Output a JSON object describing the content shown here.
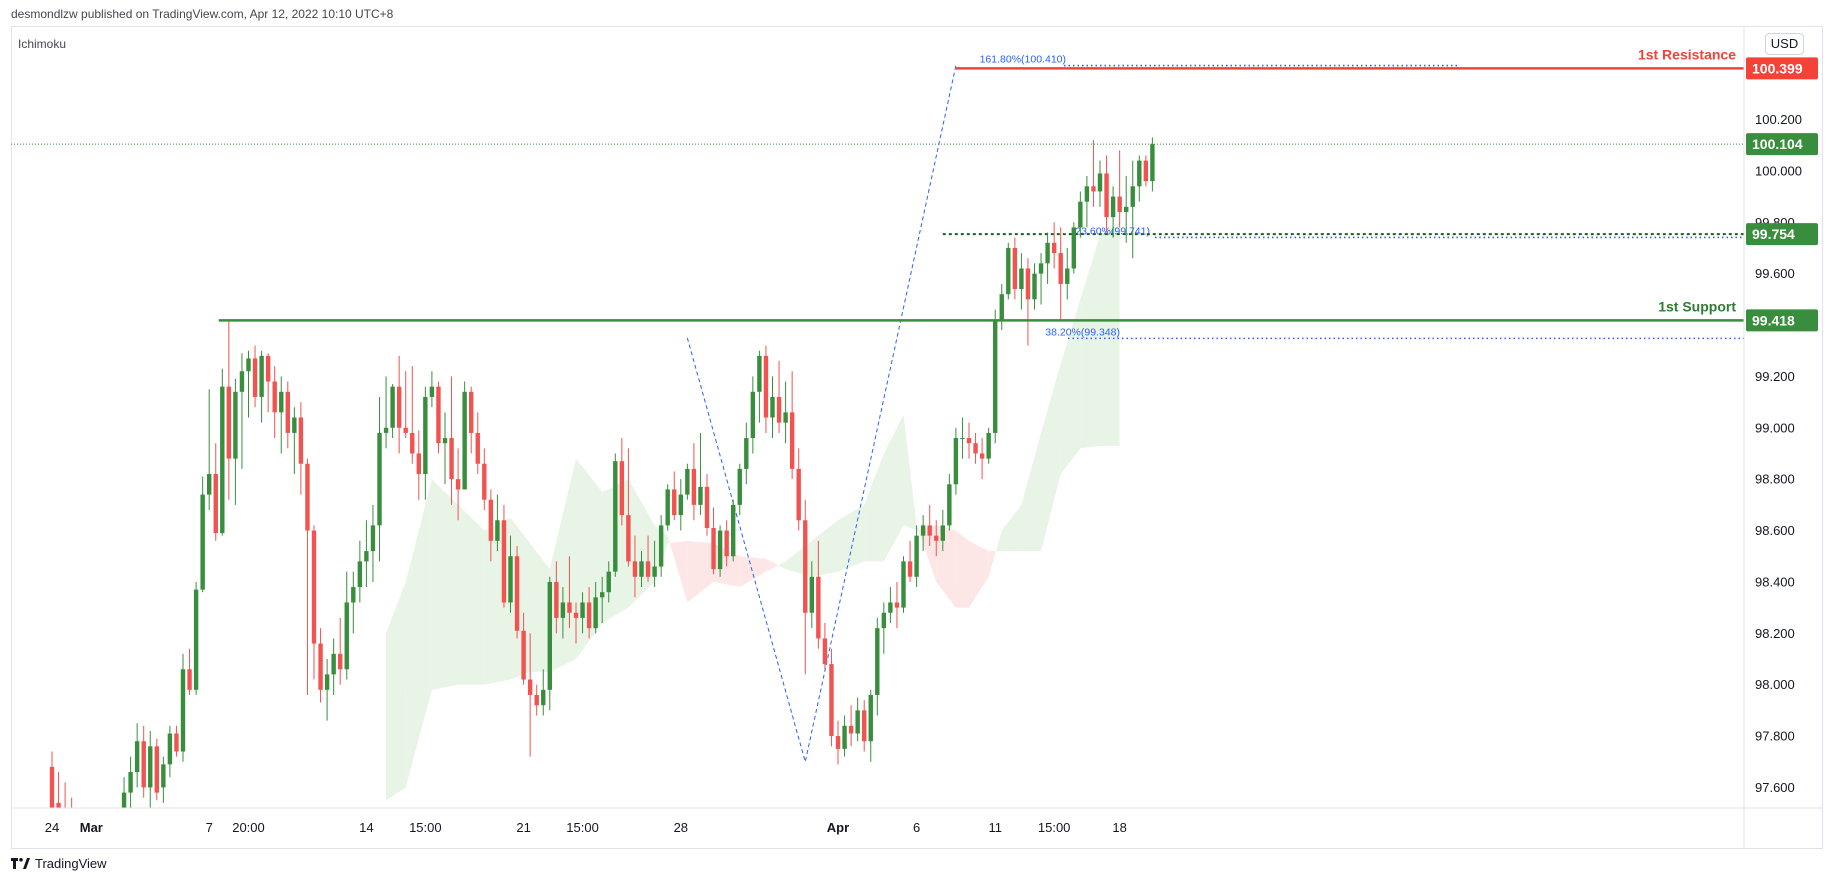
{
  "header": {
    "publisher_text": "desmondlzw published on TradingView.com, Apr 12, 2022 10:10 UTC+8",
    "indicator_label": "Ichimoku",
    "currency_button": "USD"
  },
  "footer": {
    "brand": "TradingView"
  },
  "colors": {
    "up": "#388e3c",
    "down": "#f05350",
    "resistance": "#f44336",
    "support": "#388e3c",
    "fib": "#2962ff",
    "cloud_bull": "#e8f4e6",
    "cloud_bear": "#fde7e6",
    "price_line": "#388e3c"
  },
  "chart_data": {
    "type": "candlestick",
    "y_axis_ticks": [
      "100.200",
      "100.000",
      "99.800",
      "99.600",
      "99.400",
      "99.200",
      "99.000",
      "98.800",
      "98.600",
      "98.400",
      "98.200",
      "98.000",
      "97.800",
      "97.600"
    ],
    "ylim": [
      97.52,
      100.56
    ],
    "x_axis_ticks": [
      {
        "label": "24",
        "bar": 0
      },
      {
        "label": "Mar",
        "bar": 6
      },
      {
        "label": "7",
        "bar": 24
      },
      {
        "label": "20:00",
        "bar": 30
      },
      {
        "label": "14",
        "bar": 48
      },
      {
        "label": "15:00",
        "bar": 57
      },
      {
        "label": "21",
        "bar": 72
      },
      {
        "label": "15:00",
        "bar": 81
      },
      {
        "label": "28",
        "bar": 96
      },
      {
        "label": "Apr",
        "bar": 120
      },
      {
        "label": "6",
        "bar": 132
      },
      {
        "label": "11",
        "bar": 144
      },
      {
        "label": "15:00",
        "bar": 153
      },
      {
        "label": "18",
        "bar": 163
      }
    ],
    "candles": [
      [
        97.68,
        97.74,
        97.42,
        97.5
      ],
      [
        97.54,
        97.66,
        97.4,
        97.46
      ],
      [
        97.48,
        97.62,
        97.36,
        97.42
      ],
      [
        97.44,
        97.56,
        97.34,
        97.38
      ],
      [
        97.4,
        97.52,
        97.3,
        97.36
      ],
      [
        97.38,
        97.5,
        97.28,
        97.34
      ],
      [
        97.36,
        97.48,
        97.26,
        97.32
      ],
      [
        97.33,
        97.46,
        97.24,
        97.3
      ],
      [
        97.31,
        97.45,
        97.23,
        97.28
      ],
      [
        97.3,
        97.44,
        97.22,
        97.26
      ],
      [
        97.28,
        97.42,
        97.21,
        97.25
      ],
      [
        97.26,
        97.64,
        97.2,
        97.58
      ],
      [
        97.58,
        97.72,
        97.48,
        97.66
      ],
      [
        97.66,
        97.85,
        97.6,
        97.78
      ],
      [
        97.78,
        97.84,
        97.56,
        97.6
      ],
      [
        97.6,
        97.82,
        97.52,
        97.76
      ],
      [
        97.76,
        97.79,
        97.55,
        97.58
      ],
      [
        97.6,
        97.72,
        97.54,
        97.69
      ],
      [
        97.69,
        97.84,
        97.64,
        97.81
      ],
      [
        97.81,
        97.84,
        97.72,
        97.74
      ],
      [
        97.74,
        98.12,
        97.7,
        98.06
      ],
      [
        98.06,
        98.14,
        97.96,
        97.98
      ],
      [
        97.98,
        98.4,
        97.96,
        98.37
      ],
      [
        98.37,
        98.81,
        98.36,
        98.74
      ],
      [
        98.74,
        99.15,
        98.68,
        98.82
      ],
      [
        98.82,
        98.94,
        98.56,
        98.59
      ],
      [
        98.59,
        99.23,
        98.58,
        99.16
      ],
      [
        99.16,
        99.42,
        98.72,
        98.88
      ],
      [
        98.88,
        99.19,
        98.7,
        99.14
      ],
      [
        99.14,
        99.29,
        98.84,
        99.22
      ],
      [
        99.22,
        99.3,
        99.04,
        99.27
      ],
      [
        99.27,
        99.32,
        99.08,
        99.12
      ],
      [
        99.12,
        99.3,
        99.02,
        99.28
      ],
      [
        99.28,
        99.29,
        99.06,
        99.18
      ],
      [
        99.18,
        99.24,
        98.96,
        99.06
      ],
      [
        99.06,
        99.2,
        98.9,
        99.14
      ],
      [
        99.14,
        99.18,
        98.92,
        98.98
      ],
      [
        98.98,
        99.08,
        98.82,
        99.04
      ],
      [
        99.04,
        99.1,
        98.74,
        98.86
      ],
      [
        98.86,
        98.88,
        97.96,
        98.6
      ],
      [
        98.6,
        98.62,
        98.02,
        98.16
      ],
      [
        98.16,
        98.22,
        97.93,
        97.98
      ],
      [
        97.98,
        98.1,
        97.86,
        98.04
      ],
      [
        98.04,
        98.18,
        97.96,
        98.12
      ],
      [
        98.12,
        98.26,
        98.0,
        98.06
      ],
      [
        98.06,
        98.44,
        98.02,
        98.32
      ],
      [
        98.32,
        98.44,
        98.2,
        98.38
      ],
      [
        98.38,
        98.56,
        98.32,
        98.48
      ],
      [
        98.48,
        98.64,
        98.38,
        98.52
      ],
      [
        98.52,
        98.7,
        98.4,
        98.62
      ],
      [
        98.62,
        99.12,
        98.48,
        98.98
      ],
      [
        98.98,
        99.2,
        98.92,
        99.0
      ],
      [
        99.0,
        99.17,
        98.96,
        99.16
      ],
      [
        99.16,
        99.28,
        98.9,
        99.0
      ],
      [
        99.0,
        99.22,
        98.96,
        98.98
      ],
      [
        98.98,
        99.24,
        98.86,
        98.9
      ],
      [
        98.9,
        98.99,
        98.72,
        98.82
      ],
      [
        98.82,
        99.16,
        98.72,
        99.12
      ],
      [
        99.12,
        99.22,
        99.08,
        99.16
      ],
      [
        99.16,
        99.18,
        98.9,
        98.94
      ],
      [
        98.94,
        99.06,
        98.78,
        98.96
      ],
      [
        98.96,
        99.2,
        98.7,
        98.8
      ],
      [
        98.8,
        98.92,
        98.64,
        98.76
      ],
      [
        98.76,
        99.18,
        98.76,
        99.14
      ],
      [
        99.14,
        99.16,
        98.9,
        98.98
      ],
      [
        98.98,
        99.06,
        98.82,
        98.86
      ],
      [
        98.86,
        98.92,
        98.68,
        98.72
      ],
      [
        98.72,
        98.76,
        98.48,
        98.56
      ],
      [
        98.56,
        98.74,
        98.52,
        98.64
      ],
      [
        98.64,
        98.7,
        98.3,
        98.32
      ],
      [
        98.32,
        98.58,
        98.28,
        98.5
      ],
      [
        98.5,
        98.54,
        98.18,
        98.21
      ],
      [
        98.21,
        98.28,
        98.0,
        98.02
      ],
      [
        98.02,
        98.2,
        97.72,
        97.96
      ],
      [
        97.96,
        98.0,
        97.88,
        97.92
      ],
      [
        97.92,
        98.06,
        97.88,
        97.98
      ],
      [
        97.98,
        98.42,
        97.9,
        98.4
      ],
      [
        98.4,
        98.48,
        98.2,
        98.26
      ],
      [
        98.26,
        98.38,
        98.18,
        98.32
      ],
      [
        98.32,
        98.5,
        98.22,
        98.28
      ],
      [
        98.28,
        98.32,
        98.16,
        98.26
      ],
      [
        98.26,
        98.36,
        98.2,
        98.32
      ],
      [
        98.32,
        98.38,
        98.18,
        98.22
      ],
      [
        98.22,
        98.4,
        98.2,
        98.34
      ],
      [
        98.34,
        98.42,
        98.24,
        98.36
      ],
      [
        98.36,
        98.48,
        98.32,
        98.44
      ],
      [
        98.44,
        98.9,
        98.42,
        98.87
      ],
      [
        98.87,
        98.96,
        98.62,
        98.66
      ],
      [
        98.66,
        98.92,
        98.46,
        98.48
      ],
      [
        98.48,
        98.58,
        98.34,
        98.42
      ],
      [
        98.42,
        98.52,
        98.38,
        98.48
      ],
      [
        98.48,
        98.58,
        98.4,
        98.42
      ],
      [
        98.42,
        98.56,
        98.38,
        98.46
      ],
      [
        98.46,
        98.66,
        98.42,
        98.62
      ],
      [
        98.62,
        98.78,
        98.6,
        98.76
      ],
      [
        98.76,
        98.83,
        98.64,
        98.66
      ],
      [
        98.66,
        98.8,
        98.6,
        98.74
      ],
      [
        98.74,
        98.86,
        98.72,
        98.84
      ],
      [
        98.84,
        98.94,
        98.64,
        98.7
      ],
      [
        98.7,
        98.98,
        98.66,
        98.77
      ],
      [
        98.77,
        98.82,
        98.58,
        98.61
      ],
      [
        98.61,
        98.69,
        98.43,
        98.45
      ],
      [
        98.45,
        98.62,
        98.42,
        98.6
      ],
      [
        98.6,
        98.64,
        98.46,
        98.5
      ],
      [
        98.5,
        98.72,
        98.48,
        98.7
      ],
      [
        98.7,
        98.86,
        98.66,
        98.84
      ],
      [
        98.84,
        99.02,
        98.78,
        98.96
      ],
      [
        98.96,
        99.2,
        98.9,
        99.14
      ],
      [
        99.14,
        99.3,
        99.02,
        99.28
      ],
      [
        99.28,
        99.32,
        98.98,
        99.04
      ],
      [
        99.04,
        99.2,
        98.96,
        99.12
      ],
      [
        99.12,
        99.26,
        98.98,
        99.02
      ],
      [
        99.02,
        99.18,
        98.94,
        99.06
      ],
      [
        99.06,
        99.22,
        98.8,
        98.84
      ],
      [
        98.84,
        98.92,
        98.6,
        98.64
      ],
      [
        98.64,
        98.72,
        98.04,
        98.28
      ],
      [
        98.28,
        98.48,
        98.22,
        98.42
      ],
      [
        98.42,
        98.56,
        98.14,
        98.18
      ],
      [
        98.18,
        98.24,
        98.06,
        98.08
      ],
      [
        98.08,
        98.14,
        97.76,
        97.8
      ],
      [
        97.8,
        97.86,
        97.69,
        97.75
      ],
      [
        97.75,
        97.88,
        97.72,
        97.84
      ],
      [
        97.84,
        97.92,
        97.76,
        97.81
      ],
      [
        97.81,
        97.95,
        97.78,
        97.9
      ],
      [
        97.9,
        97.94,
        97.74,
        97.78
      ],
      [
        97.78,
        97.98,
        97.7,
        97.96
      ],
      [
        97.96,
        98.26,
        97.88,
        98.22
      ],
      [
        98.22,
        98.32,
        98.12,
        98.28
      ],
      [
        98.28,
        98.38,
        98.24,
        98.32
      ],
      [
        98.32,
        98.4,
        98.22,
        98.3
      ],
      [
        98.3,
        98.5,
        98.28,
        98.48
      ],
      [
        98.48,
        98.56,
        98.4,
        98.42
      ],
      [
        98.42,
        98.62,
        98.38,
        98.58
      ],
      [
        98.58,
        98.66,
        98.52,
        98.62
      ],
      [
        98.62,
        98.7,
        98.54,
        98.58
      ],
      [
        98.58,
        98.64,
        98.5,
        98.56
      ],
      [
        98.56,
        98.68,
        98.52,
        98.62
      ],
      [
        98.62,
        98.82,
        98.6,
        98.78
      ],
      [
        98.78,
        99.0,
        98.74,
        98.96
      ],
      [
        98.96,
        99.04,
        98.88,
        98.96
      ],
      [
        98.96,
        99.02,
        98.88,
        98.94
      ],
      [
        98.94,
        98.98,
        98.86,
        98.9
      ],
      [
        98.9,
        98.96,
        98.8,
        98.88
      ],
      [
        98.88,
        99.0,
        98.86,
        98.98
      ],
      [
        98.98,
        99.46,
        98.94,
        99.42
      ],
      [
        99.42,
        99.56,
        99.38,
        99.52
      ],
      [
        99.52,
        99.72,
        99.5,
        99.7
      ],
      [
        99.7,
        99.74,
        99.5,
        99.54
      ],
      [
        99.54,
        99.68,
        99.46,
        99.62
      ],
      [
        99.62,
        99.66,
        99.32,
        99.5
      ],
      [
        99.5,
        99.64,
        99.46,
        99.6
      ],
      [
        99.6,
        99.68,
        99.48,
        99.64
      ],
      [
        99.64,
        99.76,
        99.56,
        99.72
      ],
      [
        99.72,
        99.8,
        99.62,
        99.68
      ],
      [
        99.68,
        99.78,
        99.42,
        99.56
      ],
      [
        99.56,
        99.7,
        99.5,
        99.62
      ],
      [
        99.62,
        99.8,
        99.6,
        99.78
      ],
      [
        99.78,
        99.92,
        99.74,
        99.88
      ],
      [
        99.88,
        99.98,
        99.78,
        99.94
      ],
      [
        99.94,
        100.12,
        99.86,
        99.92
      ],
      [
        99.92,
        100.04,
        99.86,
        99.99
      ],
      [
        99.99,
        100.06,
        99.76,
        99.82
      ],
      [
        99.82,
        99.94,
        99.74,
        99.9
      ],
      [
        99.9,
        100.08,
        99.78,
        99.84
      ],
      [
        99.84,
        99.98,
        99.72,
        99.86
      ],
      [
        99.86,
        100.04,
        99.66,
        99.94
      ],
      [
        99.94,
        100.06,
        99.88,
        100.04
      ],
      [
        100.04,
        100.06,
        99.94,
        99.96
      ],
      [
        99.96,
        100.13,
        99.92,
        100.104
      ]
    ],
    "cloud": [
      {
        "bar": 51,
        "a": 98.2,
        "b": 97.55
      },
      {
        "bar": 54,
        "a": 98.4,
        "b": 97.6
      },
      {
        "bar": 58,
        "a": 98.8,
        "b": 97.98
      },
      {
        "bar": 62,
        "a": 98.7,
        "b": 98.0
      },
      {
        "bar": 66,
        "a": 98.6,
        "b": 98.0
      },
      {
        "bar": 70,
        "a": 98.65,
        "b": 98.02
      },
      {
        "bar": 73,
        "a": 98.55,
        "b": 98.05
      },
      {
        "bar": 76,
        "a": 98.45,
        "b": 98.05
      },
      {
        "bar": 80,
        "a": 98.88,
        "b": 98.1
      },
      {
        "bar": 84,
        "a": 98.75,
        "b": 98.24
      },
      {
        "bar": 88,
        "a": 98.8,
        "b": 98.3
      },
      {
        "bar": 92,
        "a": 98.62,
        "b": 98.4
      },
      {
        "bar": 94,
        "a": 98.58,
        "b": 98.55
      },
      {
        "bar": 97,
        "a": 98.32,
        "b": 98.56
      },
      {
        "bar": 101,
        "a": 98.4,
        "b": 98.55
      },
      {
        "bar": 105,
        "a": 98.38,
        "b": 98.5
      },
      {
        "bar": 109,
        "a": 98.44,
        "b": 98.49
      },
      {
        "bar": 112,
        "a": 98.48,
        "b": 98.45
      },
      {
        "bar": 116,
        "a": 98.56,
        "b": 98.42
      },
      {
        "bar": 120,
        "a": 98.64,
        "b": 98.44
      },
      {
        "bar": 124,
        "a": 98.7,
        "b": 98.48
      },
      {
        "bar": 127,
        "a": 98.9,
        "b": 98.48
      },
      {
        "bar": 130,
        "a": 99.05,
        "b": 98.62
      },
      {
        "bar": 132,
        "a": 98.62,
        "b": 98.6
      },
      {
        "bar": 135,
        "a": 98.4,
        "b": 98.62
      },
      {
        "bar": 138,
        "a": 98.3,
        "b": 98.6
      },
      {
        "bar": 140,
        "a": 98.3,
        "b": 98.56
      },
      {
        "bar": 143,
        "a": 98.42,
        "b": 98.52
      },
      {
        "bar": 145,
        "a": 98.6,
        "b": 98.52
      },
      {
        "bar": 148,
        "a": 98.7,
        "b": 98.52
      },
      {
        "bar": 151,
        "a": 98.98,
        "b": 98.52
      },
      {
        "bar": 154,
        "a": 99.25,
        "b": 98.82
      },
      {
        "bar": 157,
        "a": 99.5,
        "b": 98.92
      },
      {
        "bar": 160,
        "a": 99.75,
        "b": 98.93
      },
      {
        "bar": 163,
        "a": 99.8,
        "b": 98.93
      }
    ],
    "last_price": 100.104,
    "levels": [
      {
        "name": "1st Resistance",
        "value": 100.399,
        "start_bar": 138
      },
      {
        "name": "1st Support",
        "value": 99.418,
        "start_bar": 25
      }
    ],
    "fib_levels": [
      {
        "label": "161.80%(100.410)",
        "value": 100.41
      },
      {
        "label": "23.60%(99.741)",
        "value": 99.741
      },
      {
        "label": "38.20%(99.348)",
        "value": 99.348
      }
    ],
    "price_labels": [
      "100.399",
      "100.104",
      "99.754",
      "99.418"
    ],
    "dashed_support_level": 99.754,
    "fib_swing_points": [
      [
        97,
        99.35
      ],
      [
        115,
        97.7
      ],
      [
        138,
        100.41
      ]
    ]
  }
}
